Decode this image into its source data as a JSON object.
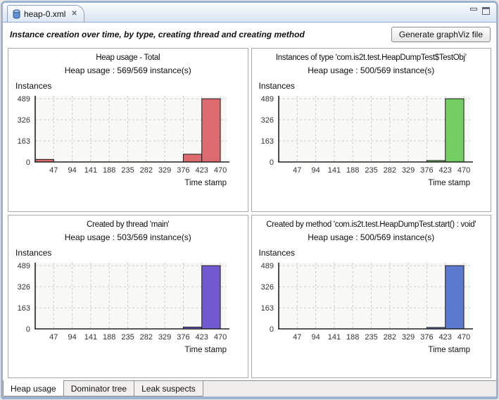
{
  "window": {
    "tab_title": "heap-0.xml",
    "icons": {
      "tab_icon": "heap-dump-cylinder",
      "close_glyph": "✕",
      "minimize": "minimize-bar",
      "maximize": "maximize-square"
    }
  },
  "header": {
    "title": "Instance creation over time, by type, creating thread and creating method",
    "button_label": "Generate graphViz file"
  },
  "chart_data": [
    {
      "type": "bar",
      "title": "Heap usage - Total",
      "subtitle": "Heap usage : 569/569 instance(s)",
      "ylabel": "Instances",
      "xlabel": "Time stamp",
      "x_ticks": [
        47,
        94,
        141,
        188,
        235,
        282,
        329,
        376,
        423,
        470
      ],
      "y_ticks": [
        0,
        163,
        326,
        489
      ],
      "xlim": [
        0,
        486
      ],
      "ylim": [
        0,
        512
      ],
      "grid": true,
      "plot_bg": "#f8f8f6",
      "grid_color": "#cccccc",
      "bar_color": "#dd6a6e",
      "bar_border": "#1c1c1c",
      "bars": [
        {
          "x0": 0,
          "x1": 47,
          "value": 20
        },
        {
          "x0": 376,
          "x1": 423,
          "value": 60
        },
        {
          "x0": 423,
          "x1": 470,
          "value": 489
        }
      ]
    },
    {
      "type": "bar",
      "title": "Instances of type 'com.is2t.test.HeapDumpTest$TestObj'",
      "subtitle": "Heap usage : 500/569 instance(s)",
      "ylabel": "Instances",
      "xlabel": "Time stamp",
      "x_ticks": [
        47,
        94,
        141,
        188,
        235,
        282,
        329,
        376,
        423,
        470
      ],
      "y_ticks": [
        0,
        163,
        326,
        489
      ],
      "xlim": [
        0,
        486
      ],
      "ylim": [
        0,
        512
      ],
      "grid": true,
      "plot_bg": "#f8f8f6",
      "grid_color": "#cccccc",
      "bar_color": "#74ce62",
      "bar_border": "#1c1c1c",
      "bars": [
        {
          "x0": 376,
          "x1": 423,
          "value": 11
        },
        {
          "x0": 423,
          "x1": 470,
          "value": 489
        }
      ]
    },
    {
      "type": "bar",
      "title": "Created by thread 'main'",
      "subtitle": "Heap usage : 503/569 instance(s)",
      "ylabel": "Instances",
      "xlabel": "Time stamp",
      "x_ticks": [
        47,
        94,
        141,
        188,
        235,
        282,
        329,
        376,
        423,
        470
      ],
      "y_ticks": [
        0,
        163,
        326,
        489
      ],
      "xlim": [
        0,
        486
      ],
      "ylim": [
        0,
        512
      ],
      "grid": true,
      "plot_bg": "#f8f8f6",
      "grid_color": "#cccccc",
      "bar_color": "#7059d1",
      "bar_border": "#1c1c1c",
      "bars": [
        {
          "x0": 376,
          "x1": 423,
          "value": 14
        },
        {
          "x0": 423,
          "x1": 470,
          "value": 489
        }
      ]
    },
    {
      "type": "bar",
      "title": "Created by method 'com.is2t.test.HeapDumpTest.start() : void'",
      "subtitle": "Heap usage : 500/569 instance(s)",
      "ylabel": "Instances",
      "xlabel": "Time stamp",
      "x_ticks": [
        47,
        94,
        141,
        188,
        235,
        282,
        329,
        376,
        423,
        470
      ],
      "y_ticks": [
        0,
        163,
        326,
        489
      ],
      "xlim": [
        0,
        486
      ],
      "ylim": [
        0,
        512
      ],
      "grid": true,
      "plot_bg": "#f8f8f6",
      "grid_color": "#cccccc",
      "bar_color": "#5b79ce",
      "bar_border": "#1c1c1c",
      "bars": [
        {
          "x0": 376,
          "x1": 423,
          "value": 11
        },
        {
          "x0": 423,
          "x1": 470,
          "value": 489
        }
      ]
    }
  ],
  "footer_tabs": [
    {
      "label": "Heap usage",
      "active": true
    },
    {
      "label": "Dominator tree",
      "active": false
    },
    {
      "label": "Leak suspects",
      "active": false
    }
  ]
}
